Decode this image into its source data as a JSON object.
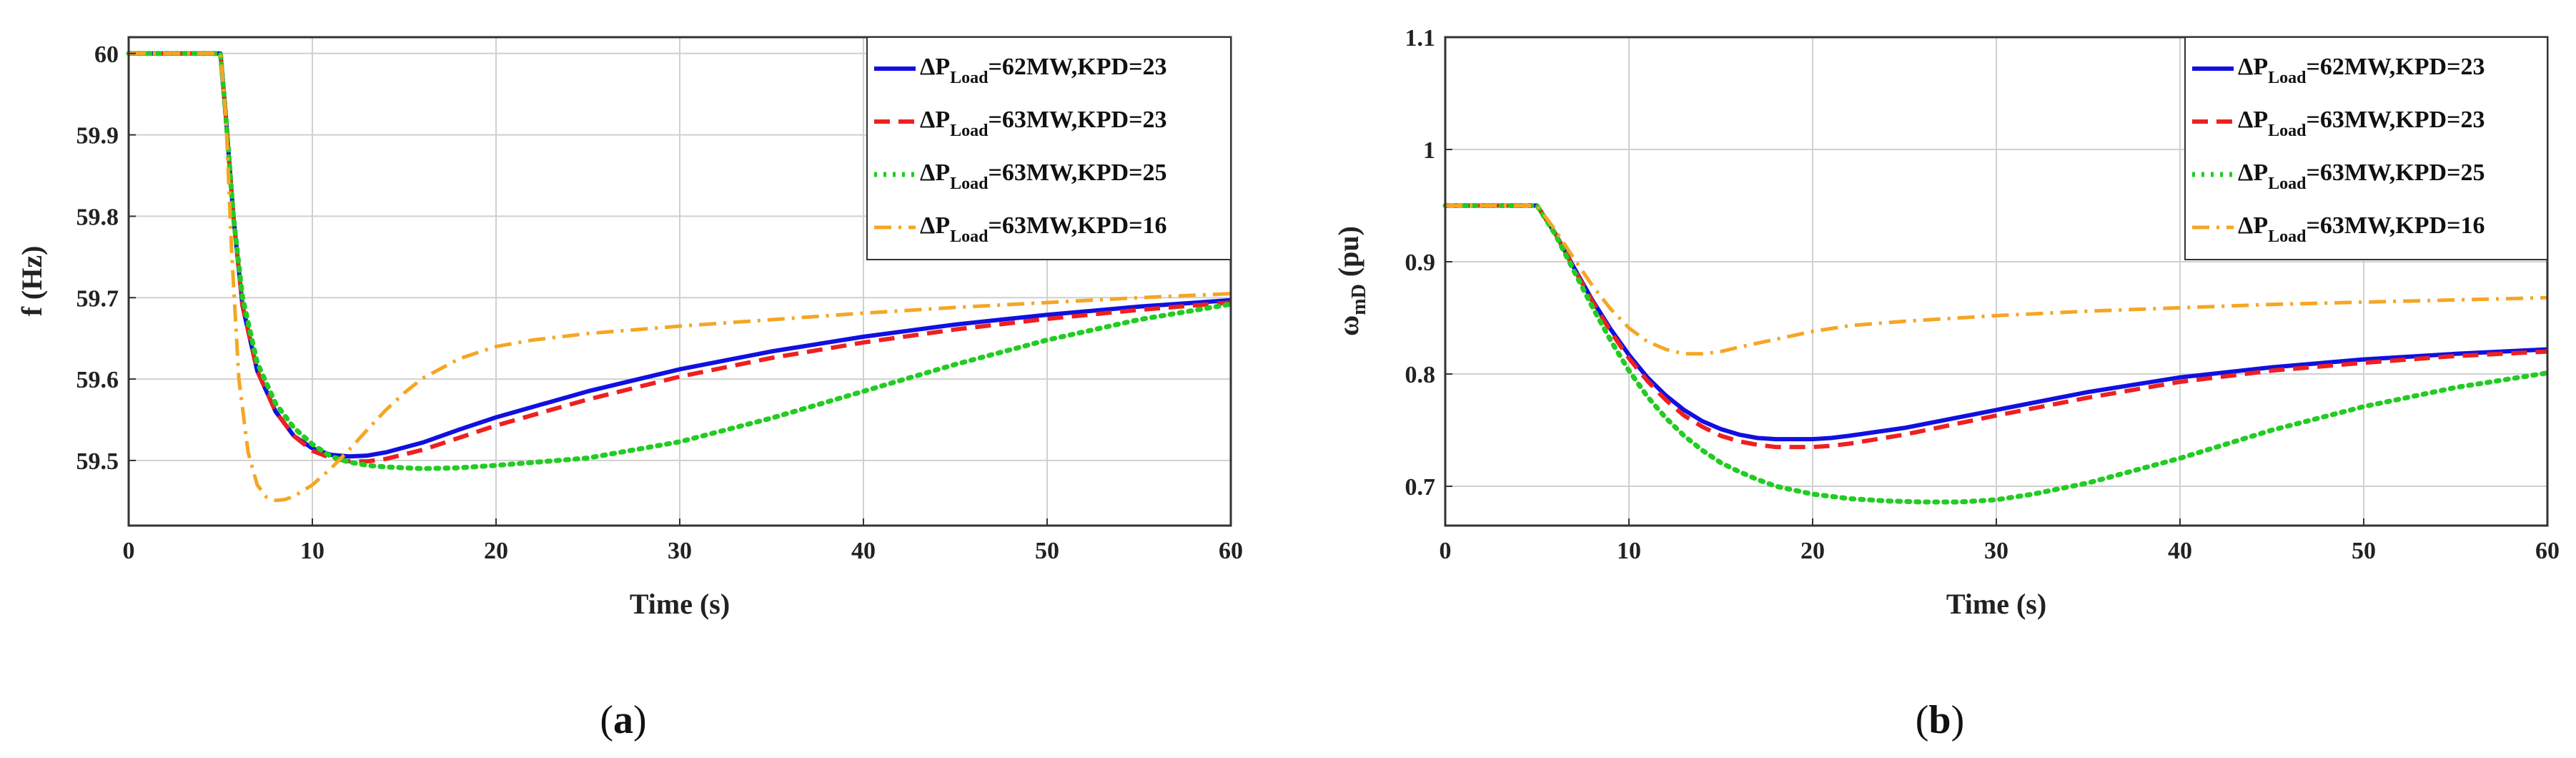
{
  "chart_data": [
    {
      "type": "line",
      "panel": "a",
      "caption": {
        "open": "(",
        "label": "a",
        "close": ")"
      },
      "xlabel": "Time (s)",
      "ylabel": "f (Hz)",
      "xlim": [
        0,
        60
      ],
      "ylim": [
        59.42,
        60.02
      ],
      "xticks": [
        0,
        10,
        20,
        30,
        40,
        50,
        60
      ],
      "yticks": [
        59.5,
        59.6,
        59.7,
        59.8,
        59.9,
        60
      ],
      "ytick_labels": [
        "59.5",
        "59.6",
        "59.7",
        "59.8",
        "59.9",
        "60"
      ],
      "grid": true,
      "legend_position": "top-right",
      "series": [
        {
          "name": "ΔP_Load=62MW,KPD=23",
          "label_pre": "ΔP",
          "label_sub": "Load",
          "label_post": "=62MW,KPD=23",
          "color": "#1010e0",
          "style": "solid",
          "x": [
            0,
            5,
            5.3,
            5.7,
            6.2,
            7,
            8,
            9,
            10,
            11,
            12,
            13,
            14,
            16,
            18,
            20,
            25,
            30,
            35,
            40,
            45,
            50,
            55,
            60
          ],
          "y": [
            60,
            60,
            59.92,
            59.8,
            59.69,
            59.61,
            59.56,
            59.53,
            59.515,
            59.507,
            59.505,
            59.506,
            59.51,
            59.522,
            59.538,
            59.553,
            59.585,
            59.612,
            59.634,
            59.652,
            59.667,
            59.679,
            59.689,
            59.697
          ]
        },
        {
          "name": "ΔP_Load=63MW,KPD=23",
          "label_pre": "ΔP",
          "label_sub": "Load",
          "label_post": "=63MW,KPD=23",
          "color": "#ee2020",
          "style": "dashed",
          "x": [
            0,
            5,
            5.3,
            5.7,
            6.2,
            7,
            8,
            9,
            10,
            11,
            12,
            13,
            14,
            16,
            18,
            20,
            25,
            30,
            35,
            40,
            45,
            50,
            55,
            60
          ],
          "y": [
            60,
            60,
            59.92,
            59.8,
            59.69,
            59.61,
            59.56,
            59.53,
            59.512,
            59.503,
            59.499,
            59.499,
            59.502,
            59.513,
            59.528,
            59.543,
            59.575,
            59.603,
            59.626,
            59.645,
            59.661,
            59.674,
            59.685,
            59.694
          ]
        },
        {
          "name": "ΔP_Load=63MW,KPD=25",
          "label_pre": "ΔP",
          "label_sub": "Load",
          "label_post": "=63MW,KPD=25",
          "color": "#22cc22",
          "style": "dotted",
          "x": [
            0,
            5,
            5.3,
            5.7,
            6.2,
            7,
            8,
            9,
            10,
            11,
            12,
            13,
            14,
            16,
            18,
            20,
            25,
            30,
            35,
            40,
            45,
            50,
            55,
            60
          ],
          "y": [
            60,
            60,
            59.92,
            59.8,
            59.7,
            59.62,
            59.57,
            59.54,
            59.52,
            59.505,
            59.498,
            59.494,
            59.492,
            59.49,
            59.491,
            59.494,
            59.503,
            59.523,
            59.552,
            59.585,
            59.618,
            59.648,
            59.673,
            59.692
          ]
        },
        {
          "name": "ΔP_Load=63MW,KPD=16",
          "label_pre": "ΔP",
          "label_sub": "Load",
          "label_post": "=63MW,KPD=16",
          "color": "#f5a623",
          "style": "dashdot",
          "x": [
            0,
            5,
            5.3,
            5.6,
            6,
            6.5,
            7,
            7.5,
            8,
            8.5,
            9,
            10,
            11,
            12,
            13,
            14,
            15,
            16,
            18,
            20,
            22,
            25,
            30,
            35,
            40,
            45,
            50,
            55,
            60
          ],
          "y": [
            60,
            60,
            59.92,
            59.76,
            59.6,
            59.51,
            59.47,
            59.455,
            59.451,
            59.452,
            59.456,
            59.47,
            59.49,
            59.513,
            59.538,
            59.562,
            59.583,
            59.601,
            59.625,
            59.64,
            59.648,
            59.656,
            59.665,
            59.673,
            59.681,
            59.688,
            59.694,
            59.7,
            59.705
          ]
        }
      ]
    },
    {
      "type": "line",
      "panel": "b",
      "caption": {
        "open": "(",
        "label": "b",
        "close": ")"
      },
      "xlabel": "Time (s)",
      "ylabel": "ω_mD (pu)",
      "ylabel_main": "ω",
      "ylabel_sub": "mD",
      "ylabel_post": " (pu)",
      "xlim": [
        0,
        60
      ],
      "ylim": [
        0.665,
        1.1
      ],
      "xticks": [
        0,
        10,
        20,
        30,
        40,
        50,
        60
      ],
      "yticks": [
        0.7,
        0.8,
        0.9,
        1,
        1.1
      ],
      "ytick_labels": [
        "0.7",
        "0.8",
        "0.9",
        "1",
        "1.1"
      ],
      "grid": true,
      "legend_position": "top-right",
      "series": [
        {
          "name": "ΔP_Load=62MW,KPD=23",
          "label_pre": "ΔP",
          "label_sub": "Load",
          "label_post": "=62MW,KPD=23",
          "color": "#1010e0",
          "style": "solid",
          "x": [
            0,
            5,
            6,
            7,
            8,
            9,
            10,
            11,
            12,
            13,
            14,
            15,
            16,
            17,
            18,
            19,
            20,
            21,
            22,
            25,
            30,
            35,
            40,
            45,
            50,
            55,
            60
          ],
          "y": [
            0.95,
            0.95,
            0.925,
            0.895,
            0.866,
            0.84,
            0.817,
            0.797,
            0.781,
            0.768,
            0.758,
            0.751,
            0.746,
            0.743,
            0.742,
            0.742,
            0.742,
            0.743,
            0.745,
            0.752,
            0.768,
            0.784,
            0.797,
            0.806,
            0.813,
            0.818,
            0.822
          ]
        },
        {
          "name": "ΔP_Load=63MW,KPD=23",
          "label_pre": "ΔP",
          "label_sub": "Load",
          "label_post": "=63MW,KPD=23",
          "color": "#ee2020",
          "style": "dashed",
          "x": [
            0,
            5,
            6,
            7,
            8,
            9,
            10,
            11,
            12,
            13,
            14,
            15,
            16,
            17,
            18,
            19,
            20,
            21,
            22,
            25,
            30,
            35,
            40,
            45,
            50,
            55,
            60
          ],
          "y": [
            0.95,
            0.95,
            0.925,
            0.894,
            0.865,
            0.838,
            0.814,
            0.794,
            0.777,
            0.763,
            0.753,
            0.745,
            0.74,
            0.737,
            0.735,
            0.735,
            0.735,
            0.736,
            0.738,
            0.746,
            0.763,
            0.779,
            0.793,
            0.803,
            0.81,
            0.816,
            0.82
          ]
        },
        {
          "name": "ΔP_Load=63MW,KPD=25",
          "label_pre": "ΔP",
          "label_sub": "Load",
          "label_post": "=63MW,KPD=25",
          "color": "#22cc22",
          "style": "dotted",
          "x": [
            0,
            5,
            6,
            7,
            8,
            9,
            10,
            11,
            12,
            13,
            14,
            15,
            16,
            17,
            18,
            20,
            22,
            24,
            26,
            28,
            30,
            32,
            35,
            40,
            45,
            50,
            55,
            60
          ],
          "y": [
            0.95,
            0.95,
            0.924,
            0.892,
            0.86,
            0.83,
            0.803,
            0.78,
            0.761,
            0.745,
            0.732,
            0.721,
            0.713,
            0.706,
            0.7,
            0.693,
            0.689,
            0.687,
            0.686,
            0.686,
            0.688,
            0.693,
            0.703,
            0.725,
            0.75,
            0.771,
            0.788,
            0.801
          ]
        },
        {
          "name": "ΔP_Load=63MW,KPD=16",
          "label_pre": "ΔP",
          "label_sub": "Load",
          "label_post": "=63MW,KPD=16",
          "color": "#f5a623",
          "style": "dashdot",
          "x": [
            0,
            5,
            6,
            7,
            8,
            9,
            10,
            11,
            12,
            13,
            14,
            15,
            16,
            18,
            20,
            22,
            25,
            30,
            35,
            40,
            45,
            50,
            55,
            60
          ],
          "y": [
            0.95,
            0.95,
            0.928,
            0.903,
            0.879,
            0.858,
            0.841,
            0.829,
            0.822,
            0.818,
            0.818,
            0.82,
            0.824,
            0.831,
            0.838,
            0.843,
            0.847,
            0.852,
            0.856,
            0.859,
            0.862,
            0.864,
            0.866,
            0.868
          ]
        }
      ]
    }
  ]
}
